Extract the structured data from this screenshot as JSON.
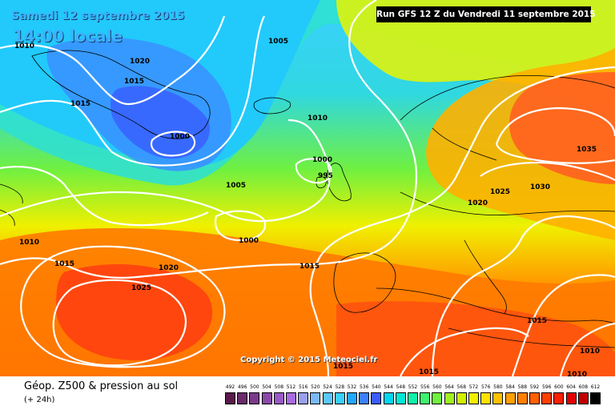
{
  "title": {
    "line1": "Samedi 12 septembre 2015",
    "line2": "14:00 locale",
    "run": "Run GFS 12 Z du Vendredi 11 septembre 2015"
  },
  "copyright": "Copyright © 2015 Meteociel.fr",
  "footer": {
    "parameter": "Géop. Z500 & pression au sol",
    "lead": "(+ 24h)"
  },
  "legend": {
    "values": [
      "492",
      "496",
      "500",
      "504",
      "508",
      "512",
      "516",
      "520",
      "524",
      "528",
      "532",
      "536",
      "540",
      "544",
      "548",
      "552",
      "556",
      "560",
      "564",
      "568",
      "572",
      "576",
      "580",
      "584",
      "588",
      "592",
      "596",
      "600",
      "604",
      "608",
      "612"
    ],
    "colors": [
      "#5a1a4a",
      "#6a2a6a",
      "#7a3a8a",
      "#8a4aa8",
      "#9a5ac6",
      "#aa6ae2",
      "#9aa0ee",
      "#7ab8f8",
      "#5ac8fe",
      "#3ad0ff",
      "#20a8ff",
      "#3a80ff",
      "#3a5cff",
      "#00d6f0",
      "#00e8d6",
      "#10f0a8",
      "#40f070",
      "#70f040",
      "#a0f020",
      "#d0f000",
      "#f0f000",
      "#ffe000",
      "#ffc000",
      "#ffa000",
      "#ff8000",
      "#ff6000",
      "#ff4000",
      "#f82000",
      "#e00000",
      "#c00000",
      "#000000"
    ]
  },
  "isobar_labels": {
    "a": "1010",
    "b": "1020",
    "c": "1015",
    "d": "1015",
    "e": "1000",
    "f": "1005",
    "g": "1010",
    "h": "1005",
    "i": "1000",
    "j": "995",
    "k": "1000",
    "l": "1010",
    "m": "1015",
    "n": "1020",
    "o": "1025",
    "p": "1015",
    "q": "1020",
    "r": "1025",
    "s": "1030",
    "t": "1035",
    "u": "1015",
    "v": "1010",
    "w": "1010",
    "x": "1015",
    "y": "1015"
  },
  "colors": {
    "title": "#3ab4ff",
    "isobar": "#ffffff",
    "coast": "#000000"
  }
}
